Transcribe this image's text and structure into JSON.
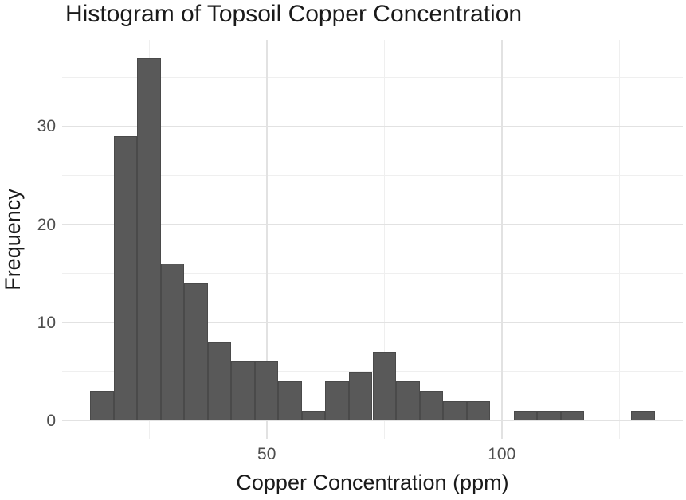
{
  "chart_data": {
    "type": "bar",
    "subtype": "histogram",
    "title": "Histogram of Topsoil Copper Concentration",
    "xlabel": "Copper Concentration (ppm)",
    "ylabel": "Frequency",
    "bin_start": 12.5,
    "bin_width": 5,
    "counts": [
      3,
      29,
      37,
      16,
      14,
      8,
      6,
      6,
      4,
      1,
      4,
      5,
      7,
      4,
      3,
      2,
      2,
      0,
      1,
      1,
      1,
      0,
      0,
      1
    ],
    "xlim": [
      6.5,
      138.5
    ],
    "ylim": [
      -1.85,
      38.85
    ],
    "x_major_breaks": [
      50,
      100
    ],
    "x_minor_breaks": [
      25,
      75,
      125
    ],
    "y_major_breaks": [
      0,
      10,
      20,
      30
    ],
    "y_minor_breaks": [
      5,
      15,
      25,
      35
    ],
    "grid": "on",
    "legend": "none",
    "colors": {
      "bar_fill": "#595959",
      "grid_major": "#e2e2e2",
      "grid_minor": "#efefef",
      "tick_label": "#4d4d4d",
      "text": "#1a1a1a",
      "background": "#ffffff"
    }
  }
}
